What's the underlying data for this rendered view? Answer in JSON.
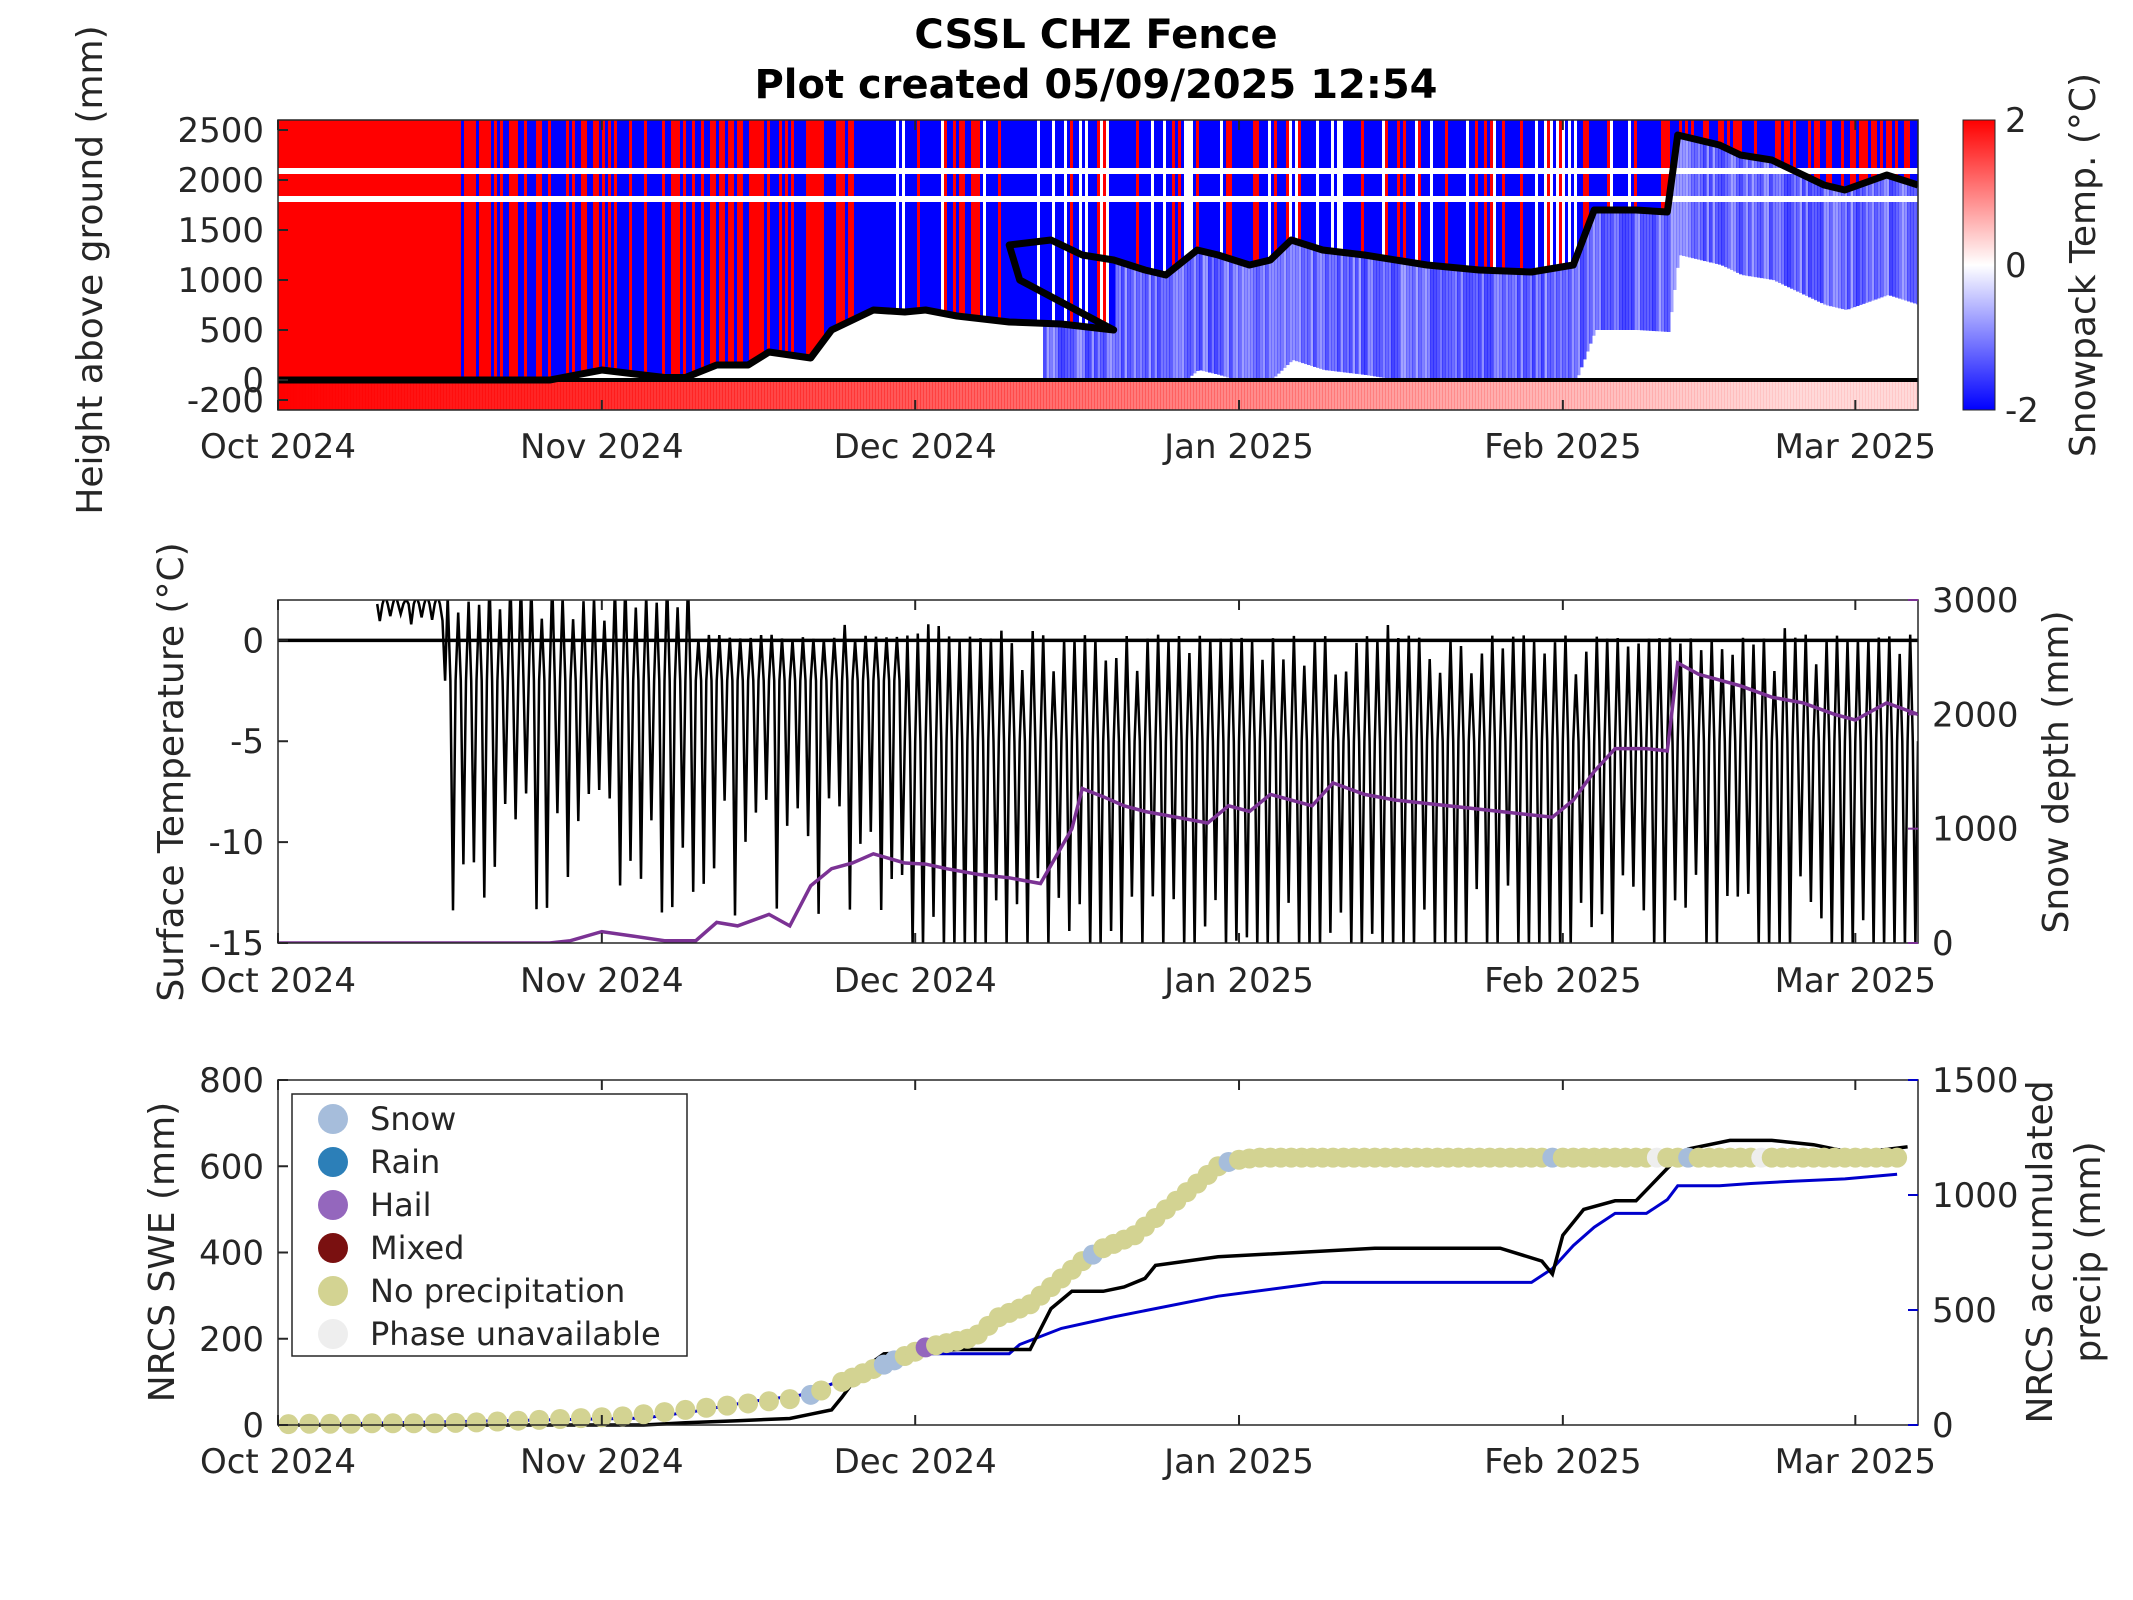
{
  "figure": {
    "title": "CSSL CHZ Fence",
    "subtitle": "Plot created 05/09/2025 12:54"
  },
  "x_axis": {
    "ticks": [
      "Oct 2024",
      "Nov 2024",
      "Dec 2024",
      "Jan 2025",
      "Feb 2025",
      "Mar 2025"
    ],
    "tick_days": [
      0,
      31,
      61,
      92,
      123,
      151
    ],
    "range_days": [
      0,
      157
    ]
  },
  "colors": {
    "warm": "#ff0000",
    "cold": "#0000ff",
    "neutral": "#ffffff",
    "black": "#000000",
    "snow_depth": "#7b3294",
    "precip": "#0000cc",
    "snow": "#a6bddb",
    "rain": "#2c7fb8",
    "hail": "#9467bd",
    "mixed": "#7a1010",
    "none": "#d3d392",
    "unavailable": "#eeeeee"
  },
  "chart_data": [
    {
      "type": "heatmap",
      "title": "CSSL CHZ Fence",
      "subtitle": "Plot created 05/09/2025 12:54",
      "ylabel": "Height above ground (mm)",
      "colorbar_label": "Snowpack Temp. (°C)",
      "colorbar_ticks": [
        "2",
        "0",
        "-2"
      ],
      "colorbar_range": [
        -2,
        2
      ],
      "ylim": [
        -300,
        2600
      ],
      "yticks": [
        "2500",
        "2000",
        "1500",
        "1000",
        "500",
        "0",
        "-200"
      ],
      "ytick_values": [
        2500,
        2000,
        1500,
        1000,
        500,
        0,
        -200
      ],
      "xticks": [
        "Oct 2024",
        "Nov 2024",
        "Dec 2024",
        "Jan 2025",
        "Feb 2025",
        "Mar 2025"
      ],
      "snow_depth_line": {
        "x_days": [
          0,
          26,
          31,
          37,
          39,
          42,
          45,
          47,
          51,
          53,
          57,
          60,
          62,
          65,
          70,
          75,
          80,
          71,
          70,
          74,
          77,
          80,
          83,
          85,
          88,
          90,
          93,
          95,
          97,
          100,
          104,
          110,
          115,
          120,
          124,
          126,
          128,
          130,
          133,
          134,
          138,
          140,
          143,
          145,
          148,
          150,
          154,
          157
        ],
        "y_mm": [
          0,
          0,
          100,
          25,
          25,
          150,
          150,
          280,
          220,
          500,
          700,
          680,
          700,
          640,
          580,
          560,
          500,
          1000,
          1350,
          1400,
          1250,
          1200,
          1100,
          1050,
          1300,
          1250,
          1150,
          1200,
          1400,
          1300,
          1250,
          1150,
          1100,
          1080,
          1150,
          1700,
          1700,
          1700,
          1680,
          2450,
          2350,
          2250,
          2200,
          2100,
          1950,
          1900,
          2050,
          1950
        ]
      }
    },
    {
      "type": "line",
      "ylabel": "Surface Temperature (°C)",
      "y2label": "Snow depth (mm)",
      "ylim": [
        -15,
        2
      ],
      "yticks": [
        "0",
        "-5",
        "-10",
        "-15"
      ],
      "ytick_values": [
        0,
        -5,
        -10,
        -15
      ],
      "y2lim": [
        0,
        3000
      ],
      "y2ticks": [
        "3000",
        "2000",
        "1000",
        "0"
      ],
      "y2tick_values": [
        3000,
        2000,
        1000,
        0
      ],
      "xticks": [
        "Oct 2024",
        "Nov 2024",
        "Dec 2024",
        "Jan 2025",
        "Feb 2025",
        "Mar 2025"
      ],
      "series": [
        {
          "axis": "right",
          "x_days": [
            0,
            26,
            28,
            31,
            34,
            37,
            40,
            42,
            44,
            47,
            49,
            51,
            53,
            55,
            57,
            60,
            62,
            64,
            67,
            70,
            73,
            76,
            77,
            79,
            81,
            83,
            86,
            89,
            91,
            93,
            95,
            97,
            99,
            101,
            104,
            107,
            112,
            117,
            122,
            124,
            126,
            128,
            131,
            133,
            134,
            136,
            140,
            143,
            146,
            149,
            151,
            154,
            157
          ],
          "values": [
            0,
            0,
            20,
            100,
            60,
            20,
            20,
            180,
            150,
            250,
            150,
            500,
            650,
            700,
            780,
            700,
            690,
            650,
            600,
            570,
            520,
            1000,
            1350,
            1280,
            1200,
            1150,
            1100,
            1050,
            1200,
            1150,
            1300,
            1250,
            1200,
            1400,
            1300,
            1250,
            1200,
            1150,
            1100,
            1250,
            1500,
            1700,
            1700,
            1680,
            2450,
            2350,
            2250,
            2150,
            2100,
            2000,
            1950,
            2100,
            2000
          ]
        }
      ]
    },
    {
      "type": "scatter",
      "ylabel": "NRCS SWE (mm)",
      "y2label": "NRCS accumulated precip (mm)",
      "ylim": [
        0,
        800
      ],
      "yticks": [
        "800",
        "600",
        "400",
        "200",
        "0"
      ],
      "ytick_values": [
        800,
        600,
        400,
        200,
        0
      ],
      "y2lim": [
        0,
        1500
      ],
      "y2ticks": [
        "1500",
        "1000",
        "500",
        "0"
      ],
      "y2tick_values": [
        1500,
        1000,
        500,
        0
      ],
      "xticks": [
        "Oct 2024",
        "Nov 2024",
        "Dec 2024",
        "Jan 2025",
        "Feb 2025",
        "Mar 2025"
      ],
      "legend": [
        "Snow",
        "Rain",
        "Hail",
        "Mixed",
        "No precipitation",
        "Phase unavailable"
      ],
      "swe": {
        "x_days": [
          0,
          35,
          39,
          44,
          49,
          51,
          53,
          54,
          56,
          58,
          65,
          70,
          70,
          71,
          72,
          74,
          76,
          77,
          79,
          81,
          83,
          84,
          90,
          105,
          117,
          121,
          122,
          123,
          125,
          128,
          130,
          134,
          135,
          139,
          143,
          147,
          151,
          156
        ],
        "values": [
          0,
          0,
          5,
          10,
          15,
          25,
          35,
          65,
          130,
          165,
          175,
          175,
          175,
          175,
          175,
          270,
          310,
          310,
          310,
          320,
          340,
          370,
          390,
          410,
          410,
          380,
          350,
          440,
          500,
          520,
          520,
          620,
          640,
          660,
          660,
          650,
          630,
          645
        ]
      },
      "precip": {
        "x_days": [
          0,
          35,
          40,
          45,
          50,
          55,
          60,
          65,
          70,
          71,
          75,
          80,
          90,
          100,
          110,
          120,
          122,
          124,
          126,
          128,
          131,
          133,
          134,
          136,
          138,
          141,
          145,
          150,
          155
        ],
        "values": [
          0,
          30,
          60,
          100,
          130,
          210,
          310,
          310,
          310,
          350,
          420,
          470,
          560,
          620,
          620,
          620,
          680,
          780,
          860,
          920,
          920,
          980,
          1040,
          1040,
          1040,
          1050,
          1060,
          1070,
          1090
        ]
      },
      "points": {
        "x_days": [
          1,
          3,
          5,
          7,
          9,
          11,
          13,
          15,
          17,
          19,
          21,
          23,
          25,
          27,
          29,
          31,
          33,
          35,
          37,
          39,
          41,
          43,
          45,
          47,
          49,
          51,
          52,
          54,
          55,
          56,
          57,
          58,
          59,
          60,
          61,
          62,
          63,
          64,
          65,
          66,
          67,
          68,
          69,
          70,
          71,
          72,
          73,
          74,
          75,
          76,
          77,
          78,
          79,
          80,
          81,
          82,
          83,
          84,
          85,
          86,
          87,
          88,
          89,
          90,
          91,
          92,
          93,
          94,
          95,
          96,
          97,
          98,
          99,
          100,
          101,
          102,
          103,
          104,
          105,
          106,
          107,
          108,
          109,
          110,
          111,
          112,
          113,
          114,
          115,
          116,
          117,
          118,
          119,
          120,
          121,
          122,
          123,
          124,
          125,
          126,
          127,
          128,
          129,
          130,
          131,
          132,
          133,
          134,
          135,
          136,
          137,
          138,
          139,
          140,
          141,
          142,
          143,
          144,
          145,
          146,
          147,
          148,
          149,
          150,
          151,
          152,
          153,
          154,
          155
        ],
        "values": [
          2,
          3,
          3,
          3,
          4,
          4,
          4,
          4,
          5,
          6,
          8,
          10,
          12,
          14,
          16,
          18,
          20,
          25,
          30,
          35,
          40,
          45,
          50,
          55,
          60,
          70,
          80,
          100,
          110,
          120,
          130,
          140,
          150,
          160,
          170,
          180,
          185,
          190,
          195,
          200,
          210,
          230,
          250,
          260,
          270,
          280,
          300,
          320,
          340,
          360,
          380,
          395,
          410,
          420,
          430,
          440,
          460,
          480,
          500,
          520,
          540,
          560,
          580,
          600,
          610,
          615,
          618,
          620,
          620,
          620,
          620,
          620,
          620,
          620,
          620,
          620,
          620,
          620,
          620,
          620,
          620,
          620,
          620,
          620,
          620,
          620,
          620,
          620,
          620,
          620,
          620,
          620,
          620,
          620,
          620,
          620,
          620,
          620,
          620,
          620,
          620,
          620,
          620,
          620,
          620,
          620,
          620,
          620,
          620,
          620,
          620,
          620,
          620,
          620,
          620,
          620,
          620,
          620,
          620,
          620,
          620,
          620,
          620,
          620,
          620,
          620,
          620,
          620,
          620
        ],
        "phase": [
          "n",
          "n",
          "n",
          "n",
          "n",
          "n",
          "n",
          "n",
          "n",
          "n",
          "n",
          "n",
          "n",
          "n",
          "n",
          "n",
          "n",
          "n",
          "n",
          "n",
          "n",
          "n",
          "n",
          "n",
          "n",
          "s",
          "n",
          "n",
          "n",
          "n",
          "n",
          "s",
          "s",
          "n",
          "n",
          "h",
          "n",
          "n",
          "n",
          "n",
          "n",
          "n",
          "n",
          "n",
          "n",
          "n",
          "n",
          "n",
          "n",
          "n",
          "n",
          "s",
          "n",
          "n",
          "n",
          "n",
          "n",
          "n",
          "n",
          "n",
          "n",
          "n",
          "n",
          "n",
          "s",
          "n",
          "n",
          "n",
          "n",
          "n",
          "n",
          "n",
          "n",
          "n",
          "n",
          "n",
          "n",
          "n",
          "n",
          "n",
          "n",
          "n",
          "n",
          "n",
          "n",
          "n",
          "n",
          "n",
          "n",
          "n",
          "n",
          "n",
          "n",
          "n",
          "n",
          "s",
          "n",
          "n",
          "n",
          "n",
          "n",
          "n",
          "n",
          "n",
          "n",
          "u",
          "n",
          "n",
          "s",
          "n",
          "n",
          "n",
          "n",
          "n",
          "n",
          "u",
          "n",
          "n",
          "n",
          "n",
          "n",
          "n",
          "n",
          "n",
          "n",
          "n",
          "n",
          "n",
          "n"
        ]
      }
    }
  ]
}
